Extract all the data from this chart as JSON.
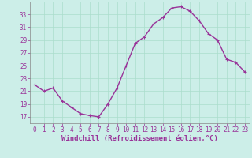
{
  "x": [
    0,
    1,
    2,
    3,
    4,
    5,
    6,
    7,
    8,
    9,
    10,
    11,
    12,
    13,
    14,
    15,
    16,
    17,
    18,
    19,
    20,
    21,
    22,
    23
  ],
  "y": [
    22.0,
    21.0,
    21.5,
    19.5,
    18.5,
    17.5,
    17.2,
    17.0,
    19.0,
    21.5,
    25.0,
    28.5,
    29.5,
    31.5,
    32.5,
    34.0,
    34.2,
    33.5,
    32.0,
    30.0,
    29.0,
    26.0,
    25.5,
    24.0
  ],
  "line_color": "#993399",
  "marker": "+",
  "marker_size": 3,
  "background_color": "#cceee8",
  "grid_color": "#aaddcc",
  "xlabel": "Windchill (Refroidissement éolien,°C)",
  "xlim": [
    -0.5,
    23.5
  ],
  "ylim": [
    16,
    35
  ],
  "yticks": [
    17,
    19,
    21,
    23,
    25,
    27,
    29,
    31,
    33
  ],
  "xticks": [
    0,
    1,
    2,
    3,
    4,
    5,
    6,
    7,
    8,
    9,
    10,
    11,
    12,
    13,
    14,
    15,
    16,
    17,
    18,
    19,
    20,
    21,
    22,
    23
  ],
  "tick_color": "#993399",
  "tick_fontsize": 5.5,
  "xlabel_fontsize": 6.5,
  "line_width": 1.0
}
